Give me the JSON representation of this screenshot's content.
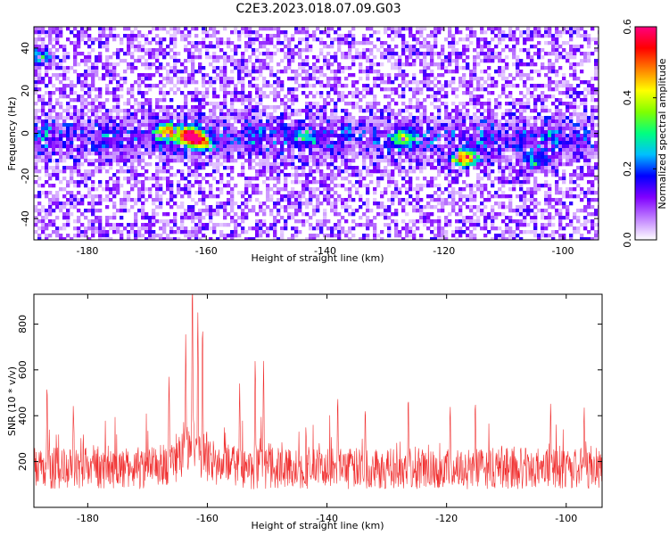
{
  "title": "C2E3.2023.018.07.09.G03",
  "chart_data": [
    {
      "type": "heatmap",
      "xlabel": "Height of straight line (km)",
      "ylabel": "Frequency (Hz)",
      "xlim": [
        -189,
        -94
      ],
      "ylim": [
        -50,
        50
      ],
      "x_ticks": [
        -180,
        -160,
        -140,
        -120,
        -100
      ],
      "y_ticks": [
        -40,
        -20,
        0,
        20,
        40
      ],
      "colorbar": {
        "label": "Normalized spectral amplitude",
        "range": [
          0,
          0.6
        ],
        "ticks": [
          0.0,
          0.2,
          0.4,
          0.6
        ],
        "tick_labels": [
          "0.0",
          "0.2",
          "0.4",
          "0.6"
        ],
        "colormap": [
          "#ffffff",
          "#c080ff",
          "#8000ff",
          "#0000ff",
          "#00bfff",
          "#00ff80",
          "#80ff00",
          "#ffff00",
          "#ff8000",
          "#ff0000",
          "#ff0080"
        ]
      },
      "band": {
        "center_frequency": -2,
        "peaks": [
          {
            "x": -163,
            "y": -1,
            "value": 0.58
          },
          {
            "x": -167,
            "y": 1,
            "value": 0.35
          },
          {
            "x": -161,
            "y": -4,
            "value": 0.33
          },
          {
            "x": -116,
            "y": -11,
            "value": 0.32
          },
          {
            "x": -118,
            "y": -12,
            "value": 0.25
          },
          {
            "x": -188,
            "y": 35,
            "value": 0.26
          },
          {
            "x": -127,
            "y": -2,
            "value": 0.22
          },
          {
            "x": -144,
            "y": -1,
            "value": 0.2
          },
          {
            "x": -105,
            "y": -13,
            "value": 0.18
          }
        ]
      },
      "grid": false
    },
    {
      "type": "line",
      "xlabel": "Height of straight line (km)",
      "ylabel": "SNR (10 * v/v)",
      "xlim": [
        -189,
        -94
      ],
      "ylim": [
        0,
        930
      ],
      "x_ticks": [
        -180,
        -160,
        -140,
        -120,
        -100
      ],
      "y_ticks": [
        200,
        400,
        600,
        800
      ],
      "baseline": 170,
      "noise_amplitude": 90,
      "spikes": [
        {
          "x": -162.5,
          "y": 930
        },
        {
          "x": -160.8,
          "y": 740
        },
        {
          "x": -161.6,
          "y": 700
        },
        {
          "x": -163.6,
          "y": 640
        },
        {
          "x": -152,
          "y": 650
        },
        {
          "x": -150.6,
          "y": 640
        },
        {
          "x": -166.4,
          "y": 560
        },
        {
          "x": -186.8,
          "y": 540
        },
        {
          "x": -154.6,
          "y": 540
        },
        {
          "x": -138.2,
          "y": 490
        },
        {
          "x": -126.4,
          "y": 490
        },
        {
          "x": -115.2,
          "y": 470
        },
        {
          "x": -119.4,
          "y": 450
        },
        {
          "x": -102.6,
          "y": 460
        },
        {
          "x": -182.4,
          "y": 450
        },
        {
          "x": -133.6,
          "y": 440
        },
        {
          "x": -97,
          "y": 440
        }
      ],
      "color": "#f03030",
      "grid": false
    }
  ]
}
